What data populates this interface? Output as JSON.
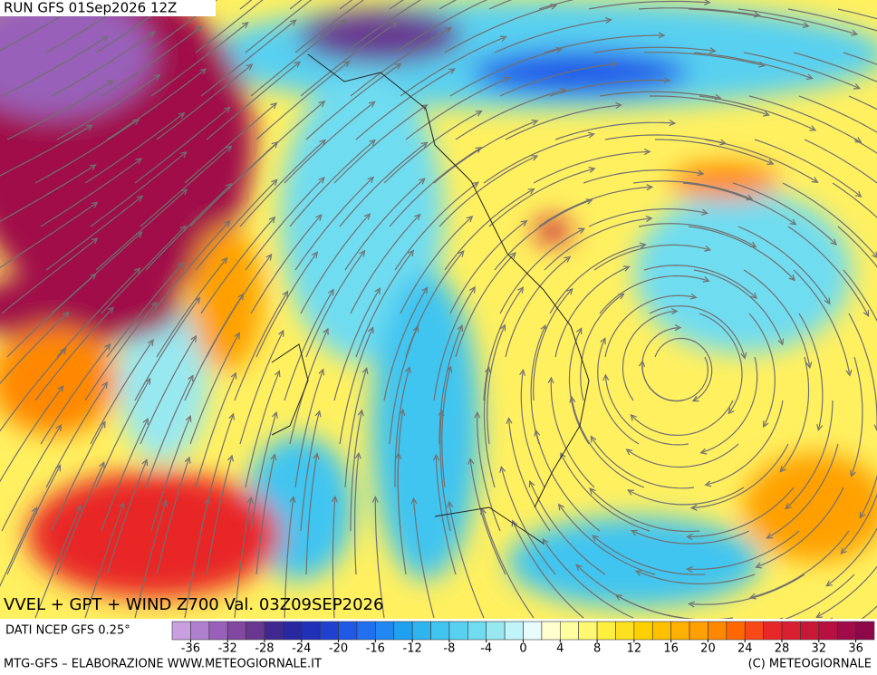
{
  "header": {
    "run": "RUN GFS 01Sep2026 12Z",
    "title": "VVEL + GPT + WIND Z700 Val. 03Z09SEP2026",
    "source": "DATI NCEP GFS 0.25°"
  },
  "colorbar": {
    "range": [
      -38,
      38
    ],
    "ticks": [
      -36,
      -32,
      -28,
      -24,
      -20,
      -16,
      -12,
      -8,
      -4,
      0,
      4,
      8,
      12,
      16,
      20,
      24,
      28,
      32,
      36
    ],
    "colors": [
      "#c8a0e0",
      "#b080d0",
      "#9860b8",
      "#8048a0",
      "#683890",
      "#402890",
      "#2828a0",
      "#2030b8",
      "#2040d0",
      "#2058e8",
      "#2070f0",
      "#2088f0",
      "#20a0f0",
      "#30b4f0",
      "#40c4f0",
      "#58d0f0",
      "#70dcf0",
      "#98e8f0",
      "#c0f4f8",
      "#e8fcfc",
      "#ffffd0",
      "#ffffa0",
      "#fff870",
      "#fff040",
      "#ffe020",
      "#ffd000",
      "#ffc000",
      "#ffb000",
      "#ffa000",
      "#ff8800",
      "#ff6800",
      "#f84818",
      "#e82828",
      "#d82030",
      "#c81838",
      "#b81040",
      "#a00c48",
      "#8c0848"
    ]
  },
  "footer": {
    "left": "MTG-GFS – ELABORAZIONE WWW.METEOGIORNALE.IT",
    "right": "(C) METEOGIORNALE"
  }
}
